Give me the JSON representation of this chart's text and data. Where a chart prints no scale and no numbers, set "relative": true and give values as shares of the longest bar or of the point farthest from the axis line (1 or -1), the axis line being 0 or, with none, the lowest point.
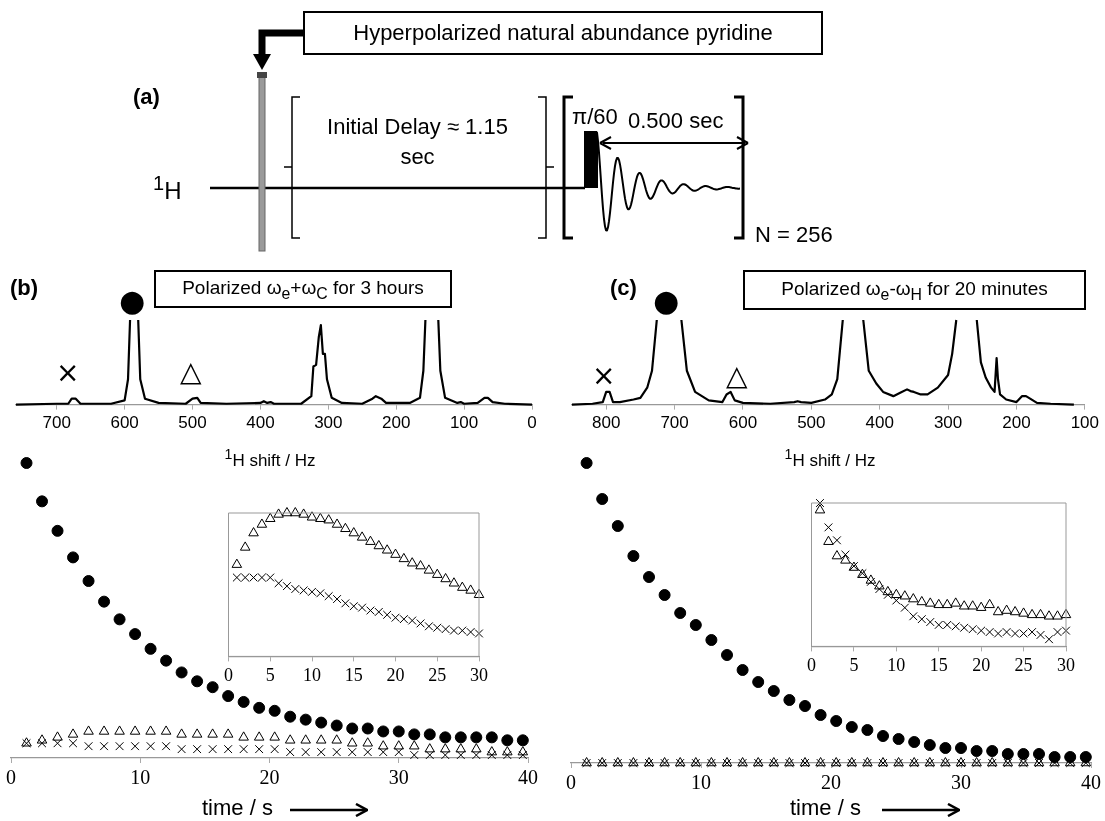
{
  "chart_data": [
    {
      "type": "other",
      "annotations": [
        "(a)",
        "Hyperpolarized natural abundance pyridine",
        "Initial Delay ≈ 1.15 sec",
        "π/60",
        "0.500 sec",
        "$^{1}$H",
        "N = 256"
      ]
    },
    {
      "type": "line",
      "title": "Polarized ω$_{e}$+ω$_{C}$ for 3 hours",
      "xlabel": "$^{1}$H shift / Hz",
      "relative": true,
      "marker": "none",
      "xlim": [
        760,
        0
      ],
      "xticks": [
        700,
        600,
        500,
        400,
        300,
        200,
        100,
        0
      ],
      "tick_labels": "x",
      "annotations": [
        "(b)",
        "×",
        "●",
        "△"
      ],
      "series": [
        {
          "color": "#000000",
          "x": [
            760,
            700,
            683,
            678,
            672,
            665,
            620,
            600,
            595,
            592,
            586,
            580,
            577,
            570,
            550,
            510,
            500,
            493,
            488,
            450,
            400,
            395,
            390,
            385,
            380,
            340,
            325,
            322,
            318,
            314,
            311,
            308,
            305,
            302,
            295,
            280,
            250,
            235,
            230,
            222,
            215,
            180,
            165,
            160,
            157,
            147,
            138,
            135,
            128,
            110,
            105,
            100,
            80,
            70,
            65,
            58,
            40,
            0
          ],
          "values": [
            0,
            0.01,
            0.01,
            0.07,
            0.07,
            0.01,
            0.01,
            0.05,
            0.3,
            1,
            null,
            1,
            0.3,
            0.07,
            0.02,
            0.01,
            0.07,
            0.08,
            0.02,
            0.01,
            0.02,
            0.04,
            0.02,
            0.03,
            0.01,
            0.01,
            0.1,
            0.45,
            0.47,
            0.8,
            0.94,
            0.6,
            0.6,
            0.3,
            0.08,
            0.02,
            0.01,
            0.07,
            0.1,
            0.07,
            0.02,
            0.02,
            0.08,
            0.4,
            1,
            null,
            1,
            0.4,
            0.08,
            0.02,
            0.03,
            0.01,
            0.02,
            0.08,
            0.08,
            0.03,
            0.01,
            0
          ]
        }
      ]
    },
    {
      "type": "line",
      "title": "Polarized ω$_{e}$-ω$_{H}$ for 20 minutes",
      "xlabel": "$^{1}$H shift / Hz",
      "relative": true,
      "marker": "none",
      "xlim": [
        850,
        100
      ],
      "xticks": [
        800,
        700,
        600,
        500,
        400,
        300,
        200,
        100
      ],
      "tick_labels": "x",
      "annotations": [
        "(c)",
        "×",
        "●",
        "△"
      ],
      "series": [
        {
          "color": "#000000",
          "x": [
            850,
            820,
            805,
            800,
            795,
            790,
            780,
            760,
            750,
            740,
            733,
            726,
            715,
            700,
            690,
            682,
            670,
            650,
            630,
            624,
            618,
            612,
            600,
            560,
            525,
            520,
            515,
            500,
            480,
            470,
            462,
            454,
            448,
            430,
            424,
            416,
            405,
            395,
            380,
            370,
            360,
            355,
            350,
            340,
            330,
            315,
            300,
            294,
            288,
            272,
            258,
            252,
            245,
            237,
            232,
            229,
            227,
            224,
            215,
            200,
            192,
            186,
            180,
            170,
            150,
            116
          ],
          "values": [
            0,
            0.01,
            0.03,
            0.15,
            0.15,
            0.03,
            0.03,
            0.06,
            0.08,
            0.2,
            0.4,
            1,
            null,
            null,
            1,
            0.4,
            0.15,
            0.05,
            0.03,
            0.12,
            0.15,
            0.05,
            0.02,
            0.01,
            0.03,
            0.04,
            0.03,
            0.02,
            0.06,
            0.12,
            0.3,
            1,
            null,
            null,
            1,
            0.4,
            0.25,
            0.15,
            0.1,
            0.14,
            0.18,
            0.16,
            0.15,
            0.12,
            0.12,
            0.2,
            0.35,
            0.6,
            1,
            null,
            1,
            0.5,
            0.32,
            0.2,
            0.15,
            0.55,
            0.3,
            0.12,
            0.06,
            0.03,
            0.1,
            0.1,
            0.07,
            0.02,
            0.01,
            0
          ]
        }
      ]
    },
    {
      "type": "scatter",
      "xlabel": "time / s",
      "relative": true,
      "xlim": [
        0,
        40
      ],
      "xticks": [
        0,
        10,
        20,
        30,
        40
      ],
      "tick_labels": "x",
      "x": [
        1.2,
        2.4,
        3.6,
        4.8,
        6,
        7.2,
        8.4,
        9.6,
        10.8,
        12,
        13.2,
        14.4,
        15.6,
        16.8,
        18,
        19.2,
        20.4,
        21.6,
        22.8,
        24,
        25.2,
        26.4,
        27.6,
        28.8,
        30,
        31.2,
        32.4,
        33.6,
        34.8,
        36,
        37.2,
        38.4,
        39.6
      ],
      "series": [
        {
          "color": "#000000",
          "marker": "circle",
          "values": [
            1,
            0.87,
            0.77,
            0.68,
            0.6,
            0.53,
            0.47,
            0.42,
            0.37,
            0.33,
            0.29,
            0.26,
            0.24,
            0.21,
            0.19,
            0.17,
            0.16,
            0.14,
            0.13,
            0.12,
            0.11,
            0.1,
            0.1,
            0.09,
            0.09,
            0.08,
            0.08,
            0.07,
            0.07,
            0.07,
            0.07,
            0.06,
            0.06
          ]
        },
        {
          "color": "#000000",
          "marker": "cross",
          "values": [
            0.05,
            0.05,
            0.05,
            0.05,
            0.04,
            0.04,
            0.04,
            0.04,
            0.04,
            0.04,
            0.03,
            0.03,
            0.03,
            0.03,
            0.03,
            0.03,
            0.03,
            0.02,
            0.02,
            0.02,
            0.02,
            0.02,
            0.02,
            0.02,
            0.02,
            0.01,
            0.01,
            0.01,
            0.01,
            0.01,
            0.01,
            0.01,
            0.01
          ]
        },
        {
          "color": "#000000",
          "marker": "triangle",
          "values": [
            0.05,
            0.06,
            0.07,
            0.08,
            0.09,
            0.09,
            0.09,
            0.09,
            0.09,
            0.09,
            0.08,
            0.08,
            0.08,
            0.08,
            0.07,
            0.07,
            0.07,
            0.06,
            0.06,
            0.06,
            0.06,
            0.05,
            0.05,
            0.04,
            0.04,
            0.04,
            0.03,
            0.03,
            0.03,
            0.03,
            0.02,
            0.02,
            0.02
          ]
        }
      ]
    },
    {
      "type": "scatter",
      "relative": true,
      "xlim": [
        0,
        30
      ],
      "xticks": [
        0,
        5,
        10,
        15,
        20,
        25,
        30
      ],
      "tick_labels": "x",
      "x": [
        1,
        2,
        3,
        4,
        5,
        6,
        7,
        8,
        9,
        10,
        11,
        12,
        13,
        14,
        15,
        16,
        17,
        18,
        19,
        20,
        21,
        22,
        23,
        24,
        25,
        26,
        27,
        28,
        29,
        30
      ],
      "series": [
        {
          "color": "#000000",
          "marker": "triangle",
          "values": [
            0.64,
            0.76,
            0.86,
            0.92,
            0.96,
            0.99,
            1,
            1,
            0.99,
            0.97,
            0.96,
            0.95,
            0.92,
            0.89,
            0.86,
            0.83,
            0.8,
            0.77,
            0.74,
            0.71,
            0.68,
            0.65,
            0.63,
            0.6,
            0.57,
            0.54,
            0.51,
            0.48,
            0.46,
            0.43
          ]
        },
        {
          "color": "#000000",
          "marker": "cross",
          "values": [
            0.55,
            0.55,
            0.55,
            0.55,
            0.55,
            0.51,
            0.49,
            0.47,
            0.46,
            0.45,
            0.44,
            0.42,
            0.4,
            0.37,
            0.35,
            0.34,
            0.32,
            0.31,
            0.29,
            0.27,
            0.26,
            0.25,
            0.23,
            0.21,
            0.2,
            0.19,
            0.18,
            0.18,
            0.17,
            0.16
          ]
        }
      ]
    },
    {
      "type": "scatter",
      "xlabel": "time / s",
      "relative": true,
      "xlim": [
        0,
        40
      ],
      "xticks": [
        0,
        10,
        20,
        30,
        40
      ],
      "tick_labels": "x",
      "x": [
        1.2,
        2.4,
        3.6,
        4.8,
        6,
        7.2,
        8.4,
        9.6,
        10.8,
        12,
        13.2,
        14.4,
        15.6,
        16.8,
        18,
        19.2,
        20.4,
        21.6,
        22.8,
        24,
        25.2,
        26.4,
        27.6,
        28.8,
        30,
        31.2,
        32.4,
        33.6,
        34.8,
        36,
        37.2,
        38.4,
        39.6
      ],
      "series": [
        {
          "color": "#000000",
          "marker": "circle",
          "values": [
            1,
            0.88,
            0.79,
            0.69,
            0.62,
            0.56,
            0.5,
            0.46,
            0.41,
            0.36,
            0.31,
            0.27,
            0.24,
            0.21,
            0.19,
            0.16,
            0.14,
            0.12,
            0.11,
            0.09,
            0.08,
            0.07,
            0.06,
            0.05,
            0.05,
            0.04,
            0.04,
            0.03,
            0.03,
            0.03,
            0.02,
            0.02,
            0.02
          ]
        },
        {
          "color": "#000000",
          "marker": "cross",
          "values": [
            0,
            0,
            0,
            0,
            0,
            0,
            0,
            0,
            0,
            0,
            0,
            0,
            0,
            0,
            0,
            0,
            0,
            0,
            0,
            0,
            0,
            0,
            0,
            0,
            0,
            0,
            0,
            0,
            0,
            0,
            0,
            0,
            0
          ]
        },
        {
          "color": "#000000",
          "marker": "triangle",
          "values": [
            0,
            0,
            0,
            0,
            0,
            0,
            0,
            0,
            0,
            0,
            0,
            0,
            0,
            0,
            0,
            0,
            0,
            0,
            0,
            0,
            0,
            0,
            0,
            0,
            0,
            0,
            0,
            0,
            0,
            0,
            0,
            0,
            0
          ]
        }
      ]
    },
    {
      "type": "scatter",
      "relative": true,
      "xlim": [
        0,
        30
      ],
      "xticks": [
        0,
        5,
        10,
        15,
        20,
        25,
        30
      ],
      "tick_labels": "x",
      "x": [
        1,
        2,
        3,
        4,
        5,
        6,
        7,
        8,
        9,
        10,
        11,
        12,
        13,
        14,
        15,
        16,
        17,
        18,
        19,
        20,
        21,
        22,
        23,
        24,
        25,
        26,
        27,
        28,
        29,
        30
      ],
      "series": [
        {
          "color": "#000000",
          "marker": "triangle",
          "values": [
            0.95,
            0.73,
            0.63,
            0.6,
            0.55,
            0.5,
            0.46,
            0.42,
            0.38,
            0.36,
            0.35,
            0.33,
            0.31,
            0.3,
            0.29,
            0.29,
            0.3,
            0.28,
            0.28,
            0.27,
            0.29,
            0.24,
            0.25,
            0.24,
            0.23,
            0.22,
            0.22,
            0.21,
            0.21,
            0.22
          ]
        },
        {
          "color": "#000000",
          "marker": "cross",
          "values": [
            1,
            0.83,
            0.74,
            0.64,
            0.56,
            0.51,
            0.45,
            0.4,
            0.36,
            0.32,
            0.27,
            0.21,
            0.19,
            0.17,
            0.15,
            0.15,
            0.14,
            0.13,
            0.12,
            0.11,
            0.1,
            0.09,
            0.1,
            0.09,
            0.09,
            0.1,
            0.08,
            0.05,
            0.1,
            0.11
          ]
        }
      ]
    }
  ]
}
